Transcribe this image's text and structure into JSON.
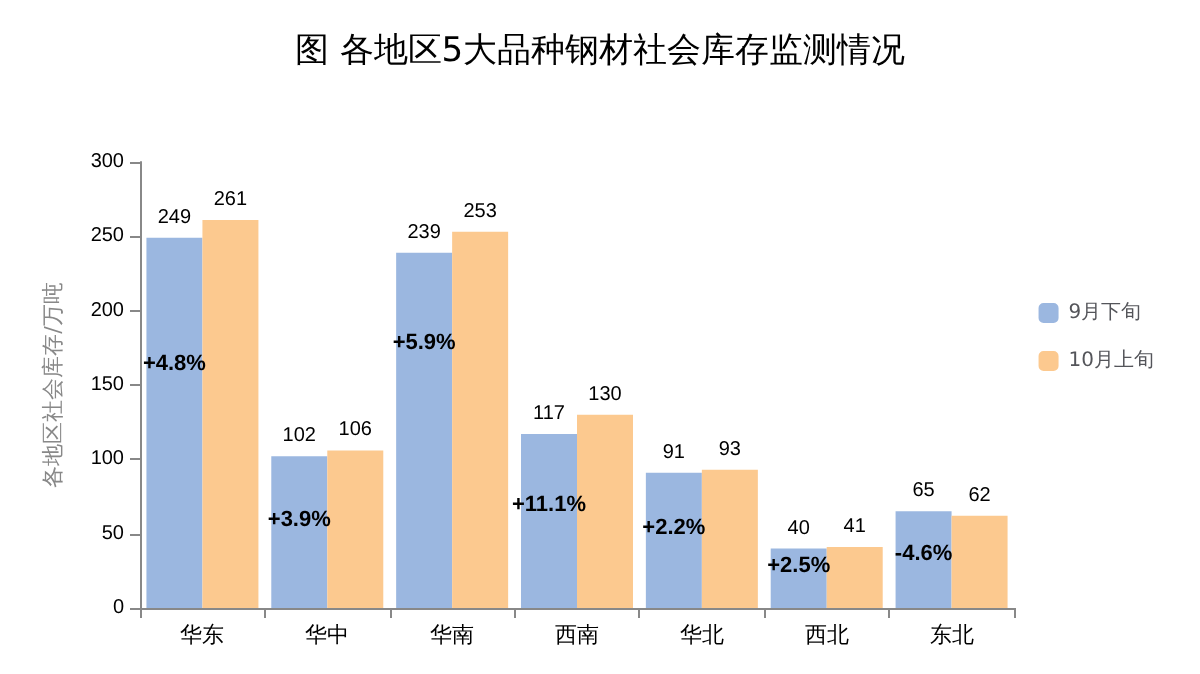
{
  "chart_data": {
    "type": "bar",
    "title": "图 各地区5大品种钢材社会库存监测情况",
    "ylabel": "各地区社会库存/万吨",
    "categories": [
      "华东",
      "华中",
      "华南",
      "西南",
      "华北",
      "西北",
      "东北"
    ],
    "series": [
      {
        "name": "9月下旬",
        "color": "#9bb7e0",
        "values": [
          249,
          102,
          239,
          117,
          91,
          40,
          65
        ]
      },
      {
        "name": "10月上旬",
        "color": "#fcc98f",
        "values": [
          261,
          106,
          253,
          130,
          93,
          41,
          62
        ]
      }
    ],
    "ylim": [
      0,
      300
    ],
    "yticks": [
      0,
      50,
      100,
      150,
      200,
      250,
      300
    ],
    "grid": false,
    "legend": "right",
    "data_labels": true,
    "annotations": [
      {
        "text": "+4.8%",
        "x": "华东",
        "y": 164
      },
      {
        "text": "+3.9%",
        "x": "华中",
        "y": 59
      },
      {
        "text": "+5.9%",
        "x": "华南",
        "y": 178
      },
      {
        "text": "+11.1%",
        "x": "西南",
        "y": 69
      },
      {
        "text": "+2.2%",
        "x": "华北",
        "y": 54
      },
      {
        "text": "+2.5%",
        "x": "西北",
        "y": 28
      },
      {
        "text": "-4.6%",
        "x": "东北",
        "y": 36
      }
    ]
  }
}
